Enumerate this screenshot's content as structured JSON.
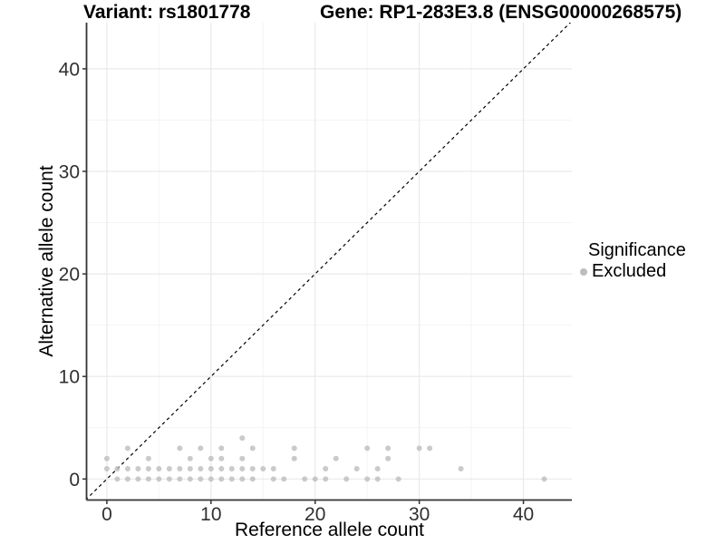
{
  "chart_data": {
    "type": "scatter",
    "title_left": "Variant: rs1801778",
    "title_right": "Gene: RP1-283E3.8 (ENSG00000268575)",
    "xlabel": "Reference allele count",
    "ylabel": "Alternative allele count",
    "xlim": [
      -1.95,
      44.65
    ],
    "ylim": [
      -2.05,
      44.5
    ],
    "xticks": [
      0,
      10,
      20,
      30,
      40
    ],
    "yticks": [
      0,
      10,
      20,
      30,
      40
    ],
    "xminor": [
      5,
      15,
      25,
      35
    ],
    "yminor": [
      5,
      15,
      25,
      35
    ],
    "grid": true,
    "legend_position": "right",
    "legend": {
      "title": "Significance",
      "entries": [
        {
          "label": "Excluded",
          "color": "#bdbdbd",
          "icon": "excluded-point-icon"
        }
      ]
    },
    "reference_line": {
      "kind": "identity y=x",
      "style": "dashed",
      "color": "#000000",
      "from": [
        -2.05,
        -2.05
      ],
      "to": [
        44.65,
        44.65
      ]
    },
    "series": [
      {
        "name": "Excluded",
        "color": "#bdbdbd",
        "points": [
          [
            1,
            0
          ],
          [
            2,
            0
          ],
          [
            3,
            0
          ],
          [
            4,
            0
          ],
          [
            5,
            0
          ],
          [
            6,
            0
          ],
          [
            7,
            0
          ],
          [
            8,
            0
          ],
          [
            9,
            0
          ],
          [
            10,
            0
          ],
          [
            11,
            0
          ],
          [
            12,
            0
          ],
          [
            13,
            0
          ],
          [
            14,
            0
          ],
          [
            16,
            0
          ],
          [
            17,
            0
          ],
          [
            19,
            0
          ],
          [
            20,
            0
          ],
          [
            21,
            0
          ],
          [
            23,
            0
          ],
          [
            25,
            0
          ],
          [
            26,
            0
          ],
          [
            28,
            0
          ],
          [
            42,
            0
          ],
          [
            0,
            1
          ],
          [
            1,
            1
          ],
          [
            2,
            1
          ],
          [
            3,
            1
          ],
          [
            4,
            1
          ],
          [
            5,
            1
          ],
          [
            6,
            1
          ],
          [
            7,
            1
          ],
          [
            8,
            1
          ],
          [
            9,
            1
          ],
          [
            10,
            1
          ],
          [
            11,
            1
          ],
          [
            12,
            1
          ],
          [
            13,
            1
          ],
          [
            14,
            1
          ],
          [
            15,
            1
          ],
          [
            16,
            1
          ],
          [
            21,
            1
          ],
          [
            24,
            1
          ],
          [
            26,
            1
          ],
          [
            34,
            1
          ],
          [
            0,
            2
          ],
          [
            4,
            2
          ],
          [
            8,
            2
          ],
          [
            10,
            2
          ],
          [
            11,
            2
          ],
          [
            13,
            2
          ],
          [
            18,
            2
          ],
          [
            22,
            2
          ],
          [
            27,
            2
          ],
          [
            2,
            3
          ],
          [
            7,
            3
          ],
          [
            9,
            3
          ],
          [
            11,
            3
          ],
          [
            14,
            3
          ],
          [
            18,
            3
          ],
          [
            25,
            3
          ],
          [
            27,
            3
          ],
          [
            30,
            3
          ],
          [
            31,
            3
          ],
          [
            13,
            4
          ]
        ]
      }
    ],
    "colors": {
      "point": "#bdbdbd",
      "grid_major": "#e9e9e9",
      "grid_minor": "#f4f4f4",
      "axis_line": "#333333",
      "tick_text": "#303030",
      "reference_line": "#000000"
    }
  }
}
